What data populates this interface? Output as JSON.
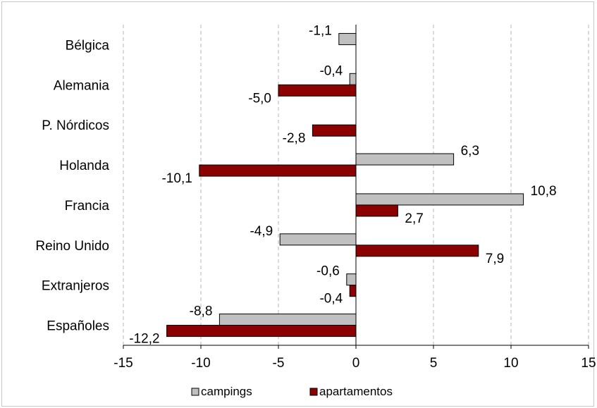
{
  "chart_data": {
    "type": "bar",
    "orientation": "horizontal",
    "categories": [
      "Bélgica",
      "Alemania",
      "P. Nórdicos",
      "Holanda",
      "Francia",
      "Reino Unido",
      "Extranjeros",
      "Españoles"
    ],
    "series": [
      {
        "name": "campings",
        "color": "#c0c0c0",
        "values": [
          -1.1,
          -0.4,
          null,
          6.3,
          10.8,
          -4.9,
          -0.6,
          -8.8
        ],
        "labels": [
          "-1,1",
          "-0,4",
          "",
          "6,3",
          "10,8",
          "-4,9",
          "-0,6",
          "-8,8"
        ]
      },
      {
        "name": "apartamentos",
        "color": "#8b0000",
        "values": [
          null,
          -5.0,
          -2.8,
          -10.1,
          2.7,
          7.9,
          -0.4,
          -12.2
        ],
        "labels": [
          "",
          "-5,0",
          "-2,8",
          "-10,1",
          "2,7",
          "7,9",
          "-0,4",
          "-12,2"
        ]
      }
    ],
    "xlim": [
      -15,
      15
    ],
    "xticks": [
      -15,
      -10,
      -5,
      0,
      5,
      10,
      15
    ],
    "xtick_labels": [
      "-15",
      "-10",
      "-5",
      "0",
      "5",
      "10",
      "15"
    ],
    "grid": "vertical dashed",
    "legend_position": "bottom",
    "title": "",
    "xlabel": "",
    "ylabel": ""
  }
}
